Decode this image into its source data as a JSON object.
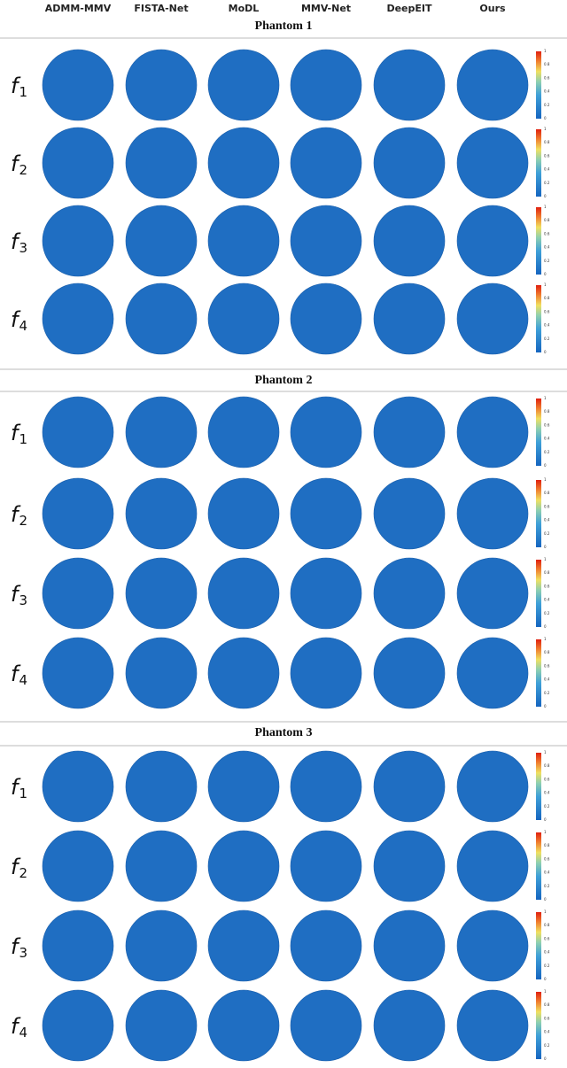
{
  "columns": [
    "ADMM-MMV",
    "FISTA-Net",
    "MoDL",
    "MMV-Net",
    "DeepEIT",
    "Ours"
  ],
  "sections": [
    {
      "title": "Phantom 1",
      "rows": [
        {
          "symbol": "f",
          "index": "1"
        },
        {
          "symbol": "f",
          "index": "2"
        },
        {
          "symbol": "f",
          "index": "3"
        },
        {
          "symbol": "f",
          "index": "4"
        }
      ]
    },
    {
      "title": "Phantom 2",
      "rows": [
        {
          "symbol": "f",
          "index": "1"
        },
        {
          "symbol": "f",
          "index": "2"
        },
        {
          "symbol": "f",
          "index": "3"
        },
        {
          "symbol": "f",
          "index": "4"
        }
      ]
    },
    {
      "title": "Phantom 3",
      "rows": [
        {
          "symbol": "f",
          "index": "1"
        },
        {
          "symbol": "f",
          "index": "2"
        },
        {
          "symbol": "f",
          "index": "3"
        },
        {
          "symbol": "f",
          "index": "4"
        }
      ]
    }
  ],
  "colorbar_ticks": [
    "1",
    "0.8",
    "0.6",
    "0.4",
    "0.2",
    "0"
  ]
}
